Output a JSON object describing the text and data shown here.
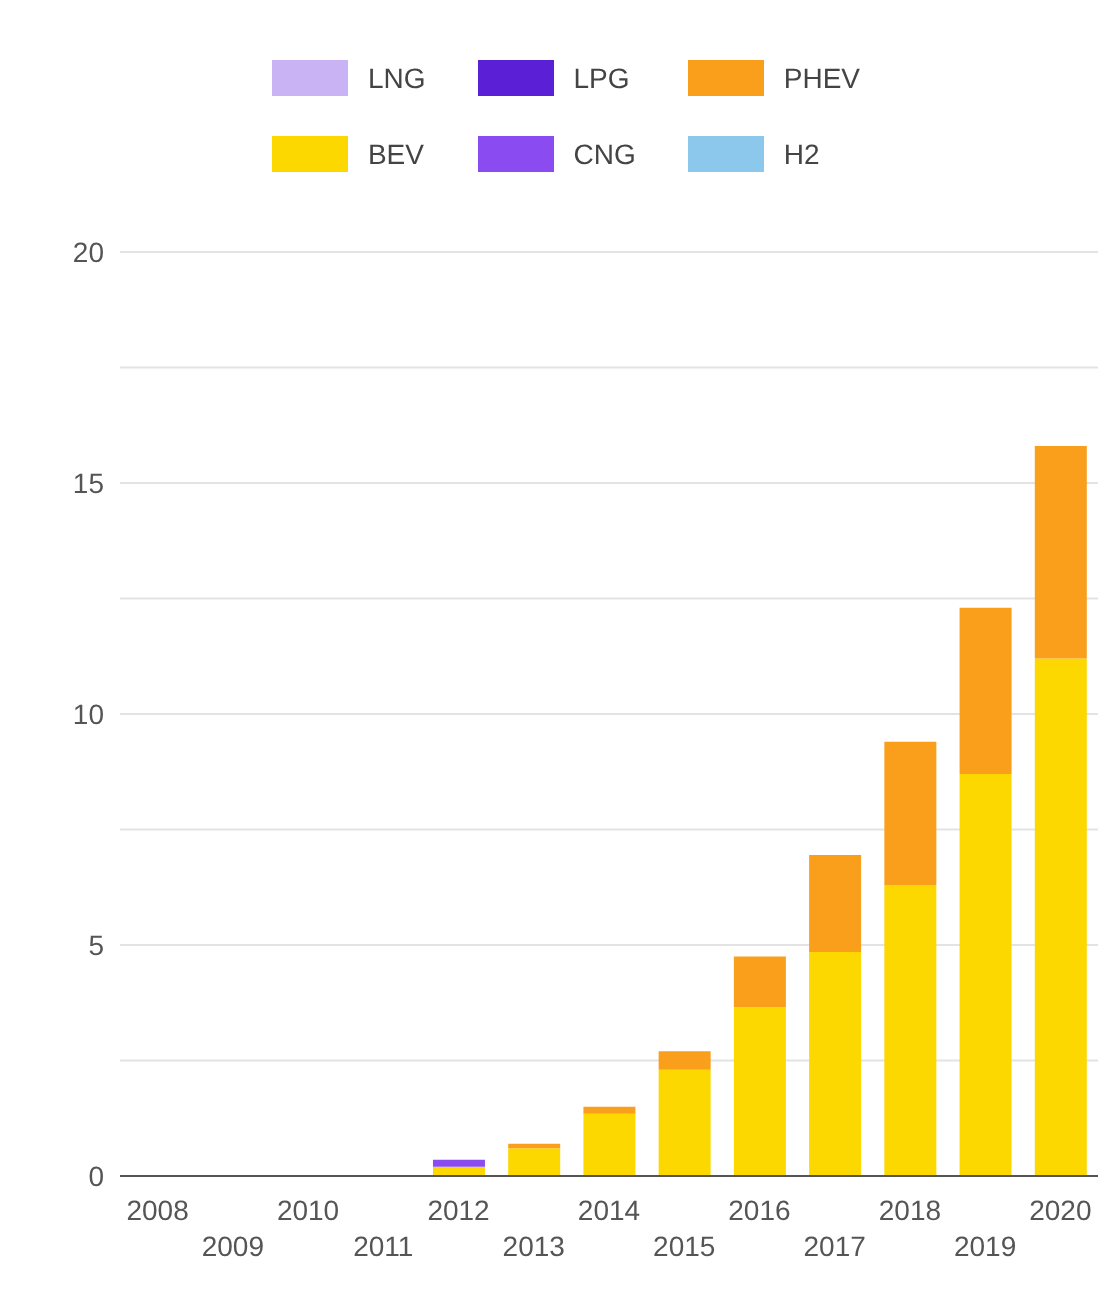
{
  "chart_data": {
    "type": "bar",
    "stacked": true,
    "categories": [
      "2008",
      "2009",
      "2010",
      "2011",
      "2012",
      "2013",
      "2014",
      "2015",
      "2016",
      "2017",
      "2018",
      "2019",
      "2020"
    ],
    "series": [
      {
        "name": "LNG",
        "color": "#c9b3f5",
        "values": [
          0,
          0,
          0,
          0,
          0,
          0,
          0,
          0,
          0,
          0,
          0,
          0,
          0
        ]
      },
      {
        "name": "BEV",
        "color": "#fdd800",
        "values": [
          0,
          0,
          0,
          0,
          0.2,
          0.6,
          1.35,
          2.3,
          3.65,
          4.85,
          6.3,
          8.7,
          11.2
        ]
      },
      {
        "name": "LPG",
        "color": "#5b1fd6",
        "values": [
          0,
          0,
          0,
          0,
          0,
          0,
          0,
          0,
          0,
          0,
          0,
          0,
          0
        ]
      },
      {
        "name": "CNG",
        "color": "#8a4cf0",
        "values": [
          0,
          0,
          0,
          0,
          0.15,
          0,
          0,
          0,
          0,
          0,
          0,
          0,
          0
        ]
      },
      {
        "name": "PHEV",
        "color": "#f99f1c",
        "values": [
          0,
          0,
          0,
          0,
          0,
          0.1,
          0.15,
          0.4,
          1.1,
          2.1,
          3.1,
          3.6,
          4.6
        ]
      },
      {
        "name": "H2",
        "color": "#8cc8ec",
        "values": [
          0,
          0,
          0,
          0,
          0,
          0,
          0,
          0,
          0,
          0,
          0,
          0,
          0
        ]
      }
    ],
    "ylim": [
      0,
      20
    ],
    "yticks": [
      0,
      {
        "value": 2.5,
        "label": null
      },
      5,
      {
        "value": 7.5,
        "label": null
      },
      10,
      {
        "value": 12.5,
        "label": null
      },
      15,
      {
        "value": 17.5,
        "label": null
      },
      20
    ],
    "grid": "y",
    "legend": "top"
  }
}
